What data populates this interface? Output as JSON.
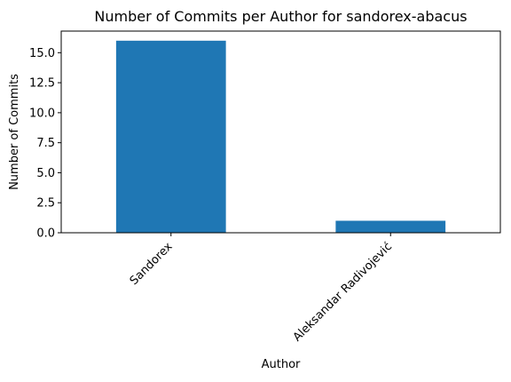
{
  "chart_data": {
    "type": "bar",
    "title": "Number of Commits per Author for sandorex-abacus",
    "xlabel": "Author",
    "ylabel": "Number of Commits",
    "categories": [
      "Sandorex",
      "Aleksandar Radivojević"
    ],
    "values": [
      16,
      1
    ],
    "ylim": [
      0,
      16.8
    ],
    "yticks": [
      0.0,
      2.5,
      5.0,
      7.5,
      10.0,
      12.5,
      15.0
    ],
    "ytick_labels": [
      "0.0",
      "2.5",
      "5.0",
      "7.5",
      "10.0",
      "12.5",
      "15.0"
    ],
    "grid": false,
    "legend": "none",
    "colors": {
      "bar": "#1f77b4",
      "axis": "#000000"
    }
  }
}
